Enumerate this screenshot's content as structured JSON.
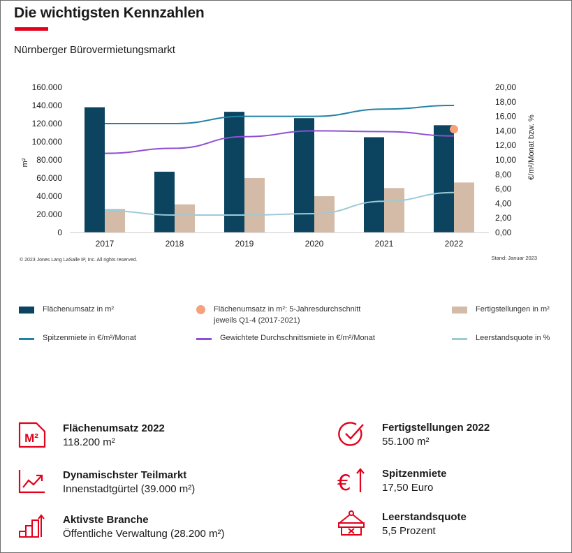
{
  "header": {
    "title": "Die wichtigsten Kennzahlen",
    "subtitle": "Nürnberger Bürovermietungsmarkt"
  },
  "chart_data": {
    "type": "bar",
    "categories": [
      "2017",
      "2018",
      "2019",
      "2020",
      "2021",
      "2022"
    ],
    "ylabel": "m²",
    "y2label": "€/m²/Monat bzw. %",
    "ylim": [
      0,
      160000
    ],
    "y2lim": [
      0,
      20
    ],
    "yticks": [
      "0",
      "20.000",
      "40.000",
      "60.000",
      "80.000",
      "100.000",
      "120.000",
      "140.000",
      "160.000"
    ],
    "y2ticks": [
      "0,00",
      "2,00",
      "4,00",
      "6,00",
      "8,00",
      "10,00",
      "12,00",
      "14,00",
      "16,00",
      "18,00",
      "20,00"
    ],
    "bars": [
      {
        "name": "Flächenumsatz in m²",
        "color": "#0c4460",
        "values": [
          138000,
          67000,
          133000,
          126000,
          105000,
          118200
        ]
      },
      {
        "name": "Fertigstellungen in m²",
        "color": "#d3bba8",
        "values": [
          26000,
          31000,
          60000,
          40000,
          49000,
          55100
        ]
      }
    ],
    "lines": [
      {
        "name": "Spitzenmiete in €/m²/Monat",
        "color": "#2281a6",
        "values": [
          15.0,
          15.0,
          16.0,
          16.0,
          17.0,
          17.5
        ]
      },
      {
        "name": "Gewichtete Durchschnittsmiete  in €/m²/Monat",
        "color": "#8e4fd4",
        "values": [
          10.9,
          11.6,
          13.2,
          14.0,
          13.9,
          13.3
        ]
      },
      {
        "name": "Leerstandsquote in %",
        "color": "#9ccbd8",
        "values": [
          3.0,
          2.4,
          2.4,
          2.6,
          4.3,
          5.5
        ]
      }
    ],
    "marker": {
      "name": "Flächenumsatz in m²: 5-Jahresdurchschnitt",
      "name2": "jeweils Q1-4 (2017-2021)",
      "color": "#f5a27c",
      "category": "2022",
      "value": 113800
    },
    "copyright": "© 2023 Jones Lang LaSalle IP, Inc. All rights reserved.",
    "stand": "Stand: Januar 2023"
  },
  "kpis": [
    {
      "icon": "m2-icon",
      "title": "Flächenumsatz 2022",
      "value": "118.200 m²",
      "icon_text": "M²"
    },
    {
      "icon": "trend-chart-icon",
      "title": "Dynamischster Teilmarkt",
      "value": "Innenstadtgürtel (39.000 m²)"
    },
    {
      "icon": "stairs-arrow-icon",
      "title": "Aktivste Branche",
      "value": "Öffentliche Verwaltung (28.200 m²)"
    },
    {
      "icon": "check-circle-icon",
      "title": "Fertigstellungen 2022",
      "value": "55.100 m²"
    },
    {
      "icon": "euro-arrow-icon",
      "title": "Spitzenmiete",
      "value": "17,50 Euro",
      "icon_text": "€"
    },
    {
      "icon": "vacancy-sign-icon",
      "title": "Leerstandsquote",
      "value": "5,5 Prozent"
    }
  ],
  "colors": {
    "accent": "#e2001a"
  }
}
